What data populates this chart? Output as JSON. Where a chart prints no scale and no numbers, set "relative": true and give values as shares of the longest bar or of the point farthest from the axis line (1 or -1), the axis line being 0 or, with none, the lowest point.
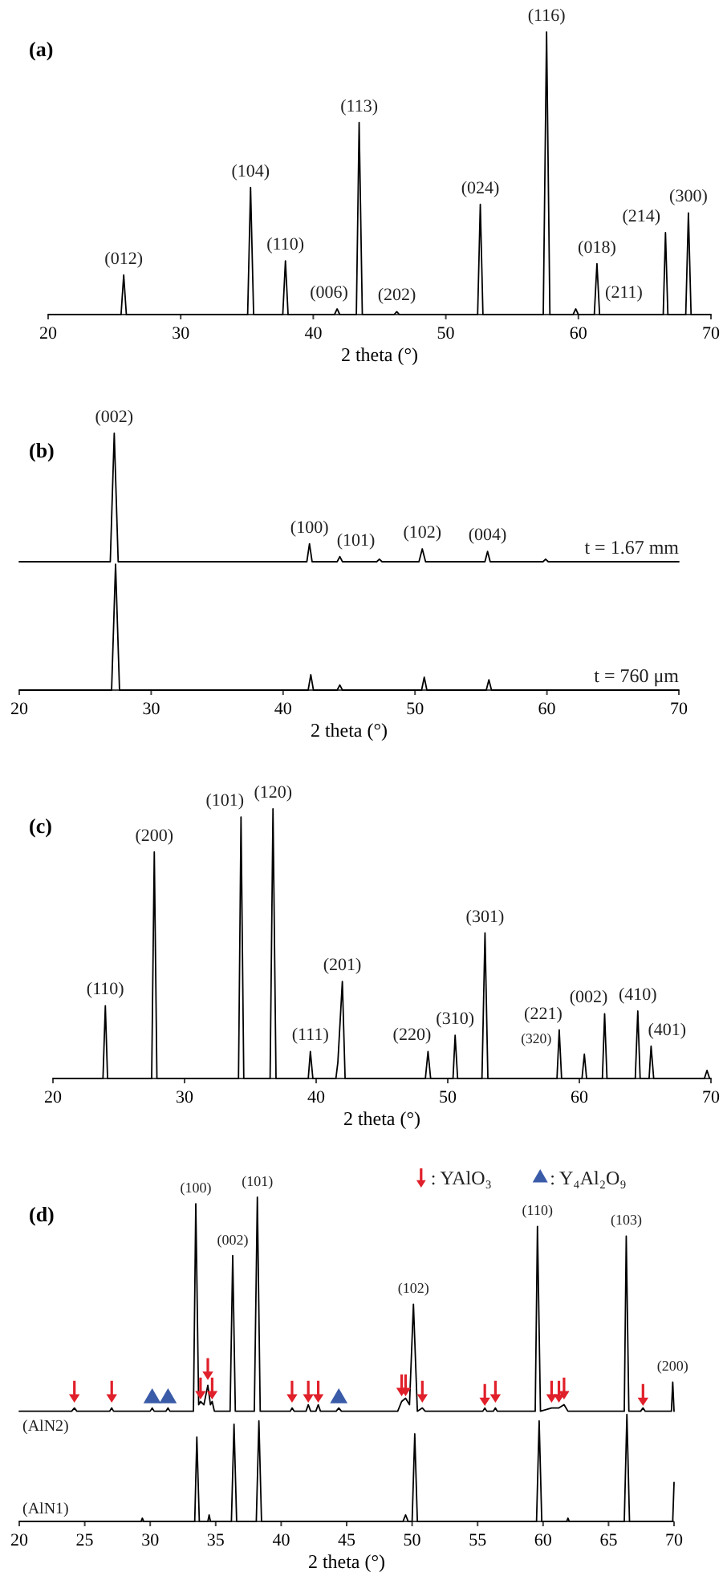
{
  "chart_data": [
    {
      "type": "line",
      "title": "(a)",
      "xlabel": "2 theta (°)",
      "relative": true,
      "xlim": [
        20,
        70
      ],
      "xticks": [
        20,
        30,
        40,
        50,
        60,
        70
      ],
      "color": "#000000",
      "x": [
        20,
        25.5,
        25.7,
        25.9,
        35.05,
        35.27,
        35.5,
        37.7,
        37.9,
        38.1,
        41.6,
        41.8,
        42.0,
        43.25,
        43.46,
        43.7,
        46.1,
        46.3,
        46.5,
        52.4,
        52.6,
        52.8,
        57.35,
        57.6,
        57.85,
        59.6,
        59.8,
        60.0,
        61.2,
        61.4,
        61.6,
        66.4,
        66.57,
        66.75,
        68.1,
        68.3,
        68.5,
        70
      ],
      "values": [
        0,
        0,
        0.14,
        0,
        0,
        0.45,
        0,
        0,
        0.19,
        0,
        0,
        0.02,
        0,
        0,
        0.68,
        0,
        0,
        0.01,
        0,
        0,
        0.39,
        0,
        0,
        1,
        0,
        0,
        0.02,
        0,
        0,
        0.18,
        0,
        0,
        0.29,
        0,
        0,
        0.36,
        0,
        0
      ],
      "annotations": [
        {
          "text": "(012)",
          "x": 25.7,
          "y": 0.14
        },
        {
          "text": "(104)",
          "x": 35.27,
          "y": 0.45
        },
        {
          "text": "(110)",
          "x": 37.9,
          "y": 0.19
        },
        {
          "text": "(006)",
          "x": 41.8,
          "y": 0.02
        },
        {
          "text": "(113)",
          "x": 43.46,
          "y": 0.68
        },
        {
          "text": "(202)",
          "x": 46.3,
          "y": 0.01
        },
        {
          "text": "(024)",
          "x": 52.6,
          "y": 0.39
        },
        {
          "text": "(116)",
          "x": 57.6,
          "y": 1
        },
        {
          "text": "(211)",
          "x": 59.8,
          "y": 0.02
        },
        {
          "text": "(018)",
          "x": 61.4,
          "y": 0.18
        },
        {
          "text": "(214)",
          "x": 66.57,
          "y": 0.29
        },
        {
          "text": "(300)",
          "x": 68.3,
          "y": 0.36
        }
      ]
    },
    {
      "type": "line",
      "title": "(b)",
      "xlabel": "2 theta (°)",
      "relative": true,
      "xlim": [
        20,
        70
      ],
      "xticks": [
        20,
        30,
        40,
        50,
        60,
        70
      ],
      "series": [
        {
          "name": "t = 1.67 mm",
          "color": "#000000",
          "x": [
            20,
            26.9,
            27.2,
            27.5,
            41.8,
            42.0,
            42.2,
            44.1,
            44.3,
            44.5,
            47.1,
            47.3,
            47.5,
            50.3,
            50.55,
            50.8,
            55.3,
            55.5,
            55.7,
            59.7,
            59.9,
            60.1,
            70
          ],
          "values": [
            0.5,
            0.5,
            1,
            0.5,
            0.5,
            0.57,
            0.5,
            0.5,
            0.52,
            0.5,
            0.5,
            0.51,
            0.5,
            0.5,
            0.55,
            0.5,
            0.5,
            0.54,
            0.5,
            0.5,
            0.51,
            0.5,
            0.5
          ]
        },
        {
          "name": "t = 760 μm",
          "color": "#000000",
          "x": [
            20,
            27.0,
            27.3,
            27.6,
            41.9,
            42.1,
            42.3,
            44.1,
            44.3,
            44.5,
            50.5,
            50.7,
            50.9,
            55.4,
            55.6,
            55.8,
            70
          ],
          "values": [
            0,
            0,
            0.49,
            0,
            0,
            0.06,
            0,
            0,
            0.02,
            0,
            0,
            0.05,
            0,
            0,
            0.04,
            0,
            0
          ]
        }
      ],
      "annotations": [
        {
          "text": "(002)",
          "x": 27.2,
          "y": 1
        },
        {
          "text": "(100)",
          "x": 42.0,
          "y": 0.57
        },
        {
          "text": "(101)",
          "x": 44.3,
          "y": 0.52
        },
        {
          "text": "(102)",
          "x": 50.55,
          "y": 0.55
        },
        {
          "text": "(004)",
          "x": 55.5,
          "y": 0.54
        }
      ]
    },
    {
      "type": "line",
      "title": "(c)",
      "xlabel": "2 theta (°)",
      "relative": true,
      "xlim": [
        20,
        70
      ],
      "xticks": [
        20,
        30,
        40,
        50,
        60,
        70
      ],
      "color": "#000000",
      "x": [
        20,
        23.8,
        23.98,
        24.15,
        27.5,
        27.7,
        27.9,
        34.1,
        34.29,
        34.5,
        36.5,
        36.72,
        36.95,
        39.4,
        39.56,
        39.75,
        41.5,
        41.65,
        41.99,
        42.2,
        48.3,
        48.5,
        48.7,
        50.4,
        50.56,
        50.75,
        52.6,
        52.83,
        53.05,
        58.3,
        58.47,
        58.65,
        60.2,
        60.38,
        60.55,
        61.75,
        61.92,
        62.1,
        64.25,
        64.44,
        64.62,
        65.3,
        65.45,
        65.65,
        69.5,
        69.7,
        69.9,
        70
      ],
      "values": [
        0,
        0,
        0.27,
        0,
        0,
        0.84,
        0,
        0,
        0.97,
        0,
        0,
        1,
        0,
        0,
        0.1,
        0,
        0,
        0.06,
        0.36,
        0,
        0,
        0.1,
        0,
        0,
        0.16,
        0,
        0,
        0.54,
        0,
        0,
        0.18,
        0,
        0,
        0.09,
        0,
        0,
        0.24,
        0,
        0,
        0.25,
        0,
        0,
        0.12,
        0,
        0,
        0.03,
        0,
        0
      ],
      "annotations": [
        {
          "text": "(110)",
          "x": 23.98,
          "y": 0.27
        },
        {
          "text": "(200)",
          "x": 27.7,
          "y": 0.84
        },
        {
          "text": "(101)",
          "x": 34.29,
          "y": 0.97
        },
        {
          "text": "(120)",
          "x": 36.72,
          "y": 1
        },
        {
          "text": "(111)",
          "x": 39.56,
          "y": 0.1
        },
        {
          "text": "(201)",
          "x": 41.99,
          "y": 0.36
        },
        {
          "text": "(220)",
          "x": 48.5,
          "y": 0.1
        },
        {
          "text": "(310)",
          "x": 50.56,
          "y": 0.16
        },
        {
          "text": "(301)",
          "x": 52.83,
          "y": 0.54
        },
        {
          "text": "(221)",
          "x": 58.47,
          "y": 0.18
        },
        {
          "text": "(320)",
          "x": 60.38,
          "y": 0.09
        },
        {
          "text": "(002)",
          "x": 61.92,
          "y": 0.24
        },
        {
          "text": "(410)",
          "x": 64.44,
          "y": 0.25
        },
        {
          "text": "(401)",
          "x": 65.45,
          "y": 0.12
        }
      ]
    },
    {
      "type": "line",
      "title": "(d)",
      "xlabel": "2 theta (°)",
      "relative": true,
      "xlim": [
        20,
        70
      ],
      "xticks": [
        20,
        25,
        30,
        35,
        40,
        45,
        50,
        55,
        60,
        65,
        70
      ],
      "legend": "top right",
      "series": [
        {
          "name": "(AlN2)",
          "color": "#000000",
          "x": [
            20,
            24.0,
            24.21,
            24.4,
            26.9,
            27.06,
            27.2,
            30.0,
            30.15,
            30.3,
            31.2,
            31.36,
            31.5,
            33.3,
            33.48,
            33.7,
            33.84,
            34.1,
            34.4,
            34.6,
            34.73,
            34.9,
            36.1,
            36.3,
            36.5,
            37.95,
            38.18,
            38.4,
            40.7,
            40.83,
            41.0,
            41.9,
            42.07,
            42.25,
            42.65,
            42.83,
            43.0,
            44.2,
            44.4,
            44.6,
            48.9,
            49.2,
            49.5,
            49.8,
            50.1,
            50.4,
            50.78,
            51.0,
            55.4,
            55.55,
            55.7,
            56.2,
            56.36,
            56.5,
            59.4,
            59.57,
            59.8,
            60.65,
            60.9,
            61.21,
            61.6,
            61.9,
            66.2,
            66.35,
            66.55,
            67.45,
            67.63,
            67.8,
            69.8,
            69.9,
            70
          ],
          "values": [
            0.34,
            0.34,
            0.35,
            0.34,
            0.34,
            0.35,
            0.34,
            0.34,
            0.35,
            0.34,
            0.34,
            0.35,
            0.34,
            0.34,
            0.98,
            0.36,
            0.37,
            0.36,
            0.42,
            0.36,
            0.37,
            0.34,
            0.34,
            0.82,
            0.34,
            0.34,
            1,
            0.34,
            0.34,
            0.35,
            0.34,
            0.34,
            0.36,
            0.34,
            0.34,
            0.36,
            0.34,
            0.34,
            0.35,
            0.34,
            0.34,
            0.37,
            0.38,
            0.36,
            0.67,
            0.34,
            0.35,
            0.34,
            0.34,
            0.35,
            0.34,
            0.34,
            0.35,
            0.34,
            0.34,
            0.91,
            0.34,
            0.35,
            0.35,
            0.35,
            0.36,
            0.34,
            0.34,
            0.88,
            0.34,
            0.34,
            0.35,
            0.34,
            0.34,
            0.43,
            0.34
          ]
        },
        {
          "name": "(AlN1)",
          "color": "#000000",
          "x": [
            20,
            29.3,
            29.4,
            29.5,
            33.4,
            33.56,
            33.75,
            34.4,
            34.5,
            34.6,
            36.2,
            36.4,
            36.6,
            38.1,
            38.3,
            38.5,
            49.3,
            49.5,
            49.7,
            50.0,
            50.2,
            50.4,
            59.5,
            59.7,
            59.9,
            61.8,
            61.9,
            62.0,
            66.2,
            66.4,
            66.6,
            69.9,
            70
          ],
          "values": [
            0,
            0,
            0.01,
            0,
            0,
            0.26,
            0,
            0,
            0.02,
            0,
            0,
            0.3,
            0,
            0,
            0.31,
            0,
            0,
            0.02,
            0,
            0,
            0.27,
            0,
            0,
            0.31,
            0,
            0,
            0.01,
            0,
            0,
            0.33,
            0,
            0,
            0.12
          ]
        },
        {
          "name": ": YAlO₃",
          "type": "scatter",
          "color": "#e0202a",
          "x": [
            24.21,
            27.06,
            33.84,
            34.4,
            34.73,
            40.83,
            42.07,
            42.83,
            49.2,
            49.5,
            50.78,
            55.55,
            56.36,
            60.65,
            61.21,
            61.6,
            67.63
          ],
          "values": [
            0.4,
            0.4,
            0.41,
            0.47,
            0.41,
            0.4,
            0.4,
            0.4,
            0.42,
            0.42,
            0.4,
            0.39,
            0.4,
            0.4,
            0.4,
            0.41,
            0.39
          ]
        },
        {
          "name": ": Y₄Al₂O₉",
          "type": "scatter",
          "marker": "triangle",
          "color": "#3a5ba8",
          "x": [
            30.15,
            31.36,
            44.4
          ],
          "values": [
            0.38,
            0.38,
            0.38
          ]
        }
      ],
      "annotations": [
        {
          "text": "(100)",
          "x": 33.48,
          "y": 0.98
        },
        {
          "text": "(002)",
          "x": 36.3,
          "y": 0.82
        },
        {
          "text": "(101)",
          "x": 38.18,
          "y": 1
        },
        {
          "text": "(102)",
          "x": 50.1,
          "y": 0.67
        },
        {
          "text": "(110)",
          "x": 59.57,
          "y": 0.91
        },
        {
          "text": "(103)",
          "x": 66.35,
          "y": 0.88
        },
        {
          "text": "(200)",
          "x": 69.9,
          "y": 0.43
        }
      ]
    }
  ]
}
